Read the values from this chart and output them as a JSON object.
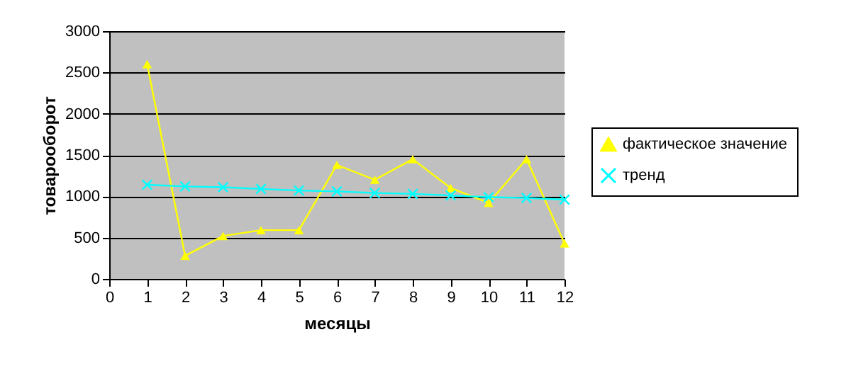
{
  "chart_data": {
    "type": "line",
    "xlabel": "месяцы",
    "ylabel": "товарооборот",
    "x": [
      1,
      2,
      3,
      4,
      5,
      6,
      7,
      8,
      9,
      10,
      11,
      12
    ],
    "series": [
      {
        "name": "фактическое значение",
        "color": "#ffff00",
        "marker": "triangle",
        "values": [
          2600,
          280,
          520,
          590,
          590,
          1380,
          1200,
          1450,
          1100,
          920,
          1450,
          430
        ]
      },
      {
        "name": "тренд",
        "color": "#00ffff",
        "marker": "cross",
        "values": [
          1140,
          1120,
          1110,
          1090,
          1070,
          1060,
          1040,
          1030,
          1010,
          990,
          980,
          960
        ]
      }
    ],
    "xlim": [
      0,
      12
    ],
    "xticks": [
      0,
      1,
      2,
      3,
      4,
      5,
      6,
      7,
      8,
      9,
      10,
      11,
      12
    ],
    "ylim": [
      0,
      3000
    ],
    "yticks": [
      0,
      500,
      1000,
      1500,
      2000,
      2500,
      3000
    ],
    "grid": "y",
    "legend": "right",
    "line_style": "solid"
  }
}
